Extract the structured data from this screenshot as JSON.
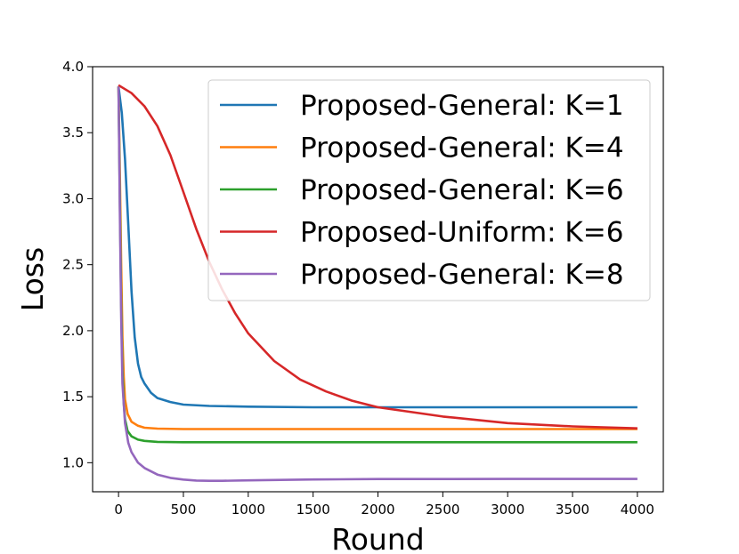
{
  "chart_data": {
    "type": "line",
    "title": "",
    "xlabel": "Round",
    "ylabel": "Loss",
    "xlim": [
      -200,
      4200
    ],
    "ylim": [
      0.78,
      4.0
    ],
    "xticks": [
      0,
      500,
      1000,
      1500,
      2000,
      2500,
      3000,
      3500,
      4000
    ],
    "yticks": [
      1.0,
      1.5,
      2.0,
      2.5,
      3.0,
      3.5,
      4.0
    ],
    "xtick_labels": [
      "0",
      "500",
      "1000",
      "1500",
      "2000",
      "2500",
      "3000",
      "3500",
      "4000"
    ],
    "ytick_labels": [
      "1.0",
      "1.5",
      "2.0",
      "2.5",
      "3.0",
      "3.5",
      "4.0"
    ],
    "grid": false,
    "legend_position": "upper-right",
    "series": [
      {
        "name": "Proposed-General: K=1",
        "color": "#1f77b4",
        "x": [
          0,
          25,
          50,
          75,
          100,
          125,
          150,
          175,
          200,
          250,
          300,
          400,
          500,
          700,
          1000,
          1500,
          2000,
          3000,
          4000
        ],
        "y": [
          3.85,
          3.65,
          3.3,
          2.8,
          2.3,
          1.95,
          1.75,
          1.65,
          1.6,
          1.53,
          1.49,
          1.46,
          1.44,
          1.43,
          1.425,
          1.42,
          1.42,
          1.42,
          1.42
        ]
      },
      {
        "name": "Proposed-General: K=4",
        "color": "#ff7f0e",
        "x": [
          0,
          10,
          20,
          30,
          40,
          50,
          70,
          100,
          150,
          200,
          300,
          500,
          1000,
          2000,
          3000,
          4000
        ],
        "y": [
          3.85,
          3.2,
          2.5,
          1.95,
          1.65,
          1.48,
          1.37,
          1.31,
          1.28,
          1.265,
          1.258,
          1.255,
          1.255,
          1.255,
          1.255,
          1.255
        ]
      },
      {
        "name": "Proposed-General: K=6",
        "color": "#2ca02c",
        "x": [
          0,
          10,
          20,
          30,
          40,
          50,
          70,
          100,
          150,
          200,
          300,
          500,
          1000,
          2000,
          3000,
          4000
        ],
        "y": [
          3.85,
          3.0,
          2.2,
          1.7,
          1.45,
          1.33,
          1.24,
          1.2,
          1.175,
          1.165,
          1.158,
          1.155,
          1.155,
          1.155,
          1.155,
          1.155
        ]
      },
      {
        "name": "Proposed-Uniform: K=6",
        "color": "#d62728",
        "x": [
          0,
          100,
          200,
          300,
          400,
          500,
          600,
          700,
          800,
          900,
          1000,
          1200,
          1400,
          1600,
          1800,
          2000,
          2500,
          3000,
          3500,
          4000
        ],
        "y": [
          3.86,
          3.8,
          3.7,
          3.55,
          3.33,
          3.05,
          2.77,
          2.52,
          2.31,
          2.13,
          1.98,
          1.77,
          1.63,
          1.54,
          1.47,
          1.42,
          1.35,
          1.3,
          1.275,
          1.26
        ]
      },
      {
        "name": "Proposed-General: K=8",
        "color": "#9467bd",
        "x": [
          0,
          10,
          20,
          30,
          50,
          75,
          100,
          150,
          200,
          300,
          400,
          500,
          600,
          700,
          800,
          1000,
          1500,
          2000,
          3000,
          4000
        ],
        "y": [
          3.85,
          2.9,
          2.1,
          1.6,
          1.3,
          1.15,
          1.08,
          1.0,
          0.96,
          0.91,
          0.885,
          0.872,
          0.865,
          0.863,
          0.863,
          0.866,
          0.873,
          0.876,
          0.877,
          0.877
        ]
      }
    ]
  }
}
